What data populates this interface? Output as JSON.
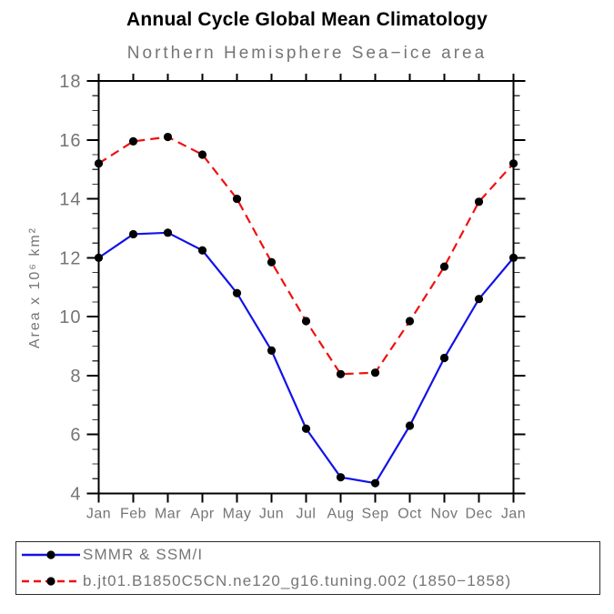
{
  "chart_data": {
    "type": "line",
    "title": "Annual Cycle Global Mean Climatology",
    "subtitle": "Northern Hemisphere Sea−ice area",
    "xlabel": "",
    "ylabel": "Area x 10⁶ km²",
    "categories": [
      "Jan",
      "Feb",
      "Mar",
      "Apr",
      "May",
      "Jun",
      "Jul",
      "Aug",
      "Sep",
      "Oct",
      "Nov",
      "Dec",
      "Jan"
    ],
    "ylim": [
      4,
      18
    ],
    "ytick_major_interval": 2,
    "ytick_minor_interval": 0.5,
    "grid": false,
    "legend_position": "bottom-left-box",
    "axis_color": "#000000",
    "label_color": "#757575",
    "marker_color": "#000000",
    "series": [
      {
        "name": "SMMR & SSM/I",
        "color": "#1212e8",
        "line_style": "solid",
        "marker": "filled-circle",
        "values": [
          12.0,
          12.8,
          12.85,
          12.25,
          10.8,
          8.85,
          6.2,
          4.55,
          4.35,
          6.3,
          8.6,
          10.6,
          12.0
        ]
      },
      {
        "name": "b.jt01.B1850C5CN.ne120_g16.tuning.002 (1850−1858)",
        "color": "#f01010",
        "line_style": "dashed",
        "marker": "filled-circle",
        "values": [
          15.2,
          15.95,
          16.1,
          15.5,
          14.0,
          11.85,
          9.85,
          8.05,
          8.1,
          9.85,
          11.7,
          13.9,
          15.2
        ]
      }
    ]
  }
}
